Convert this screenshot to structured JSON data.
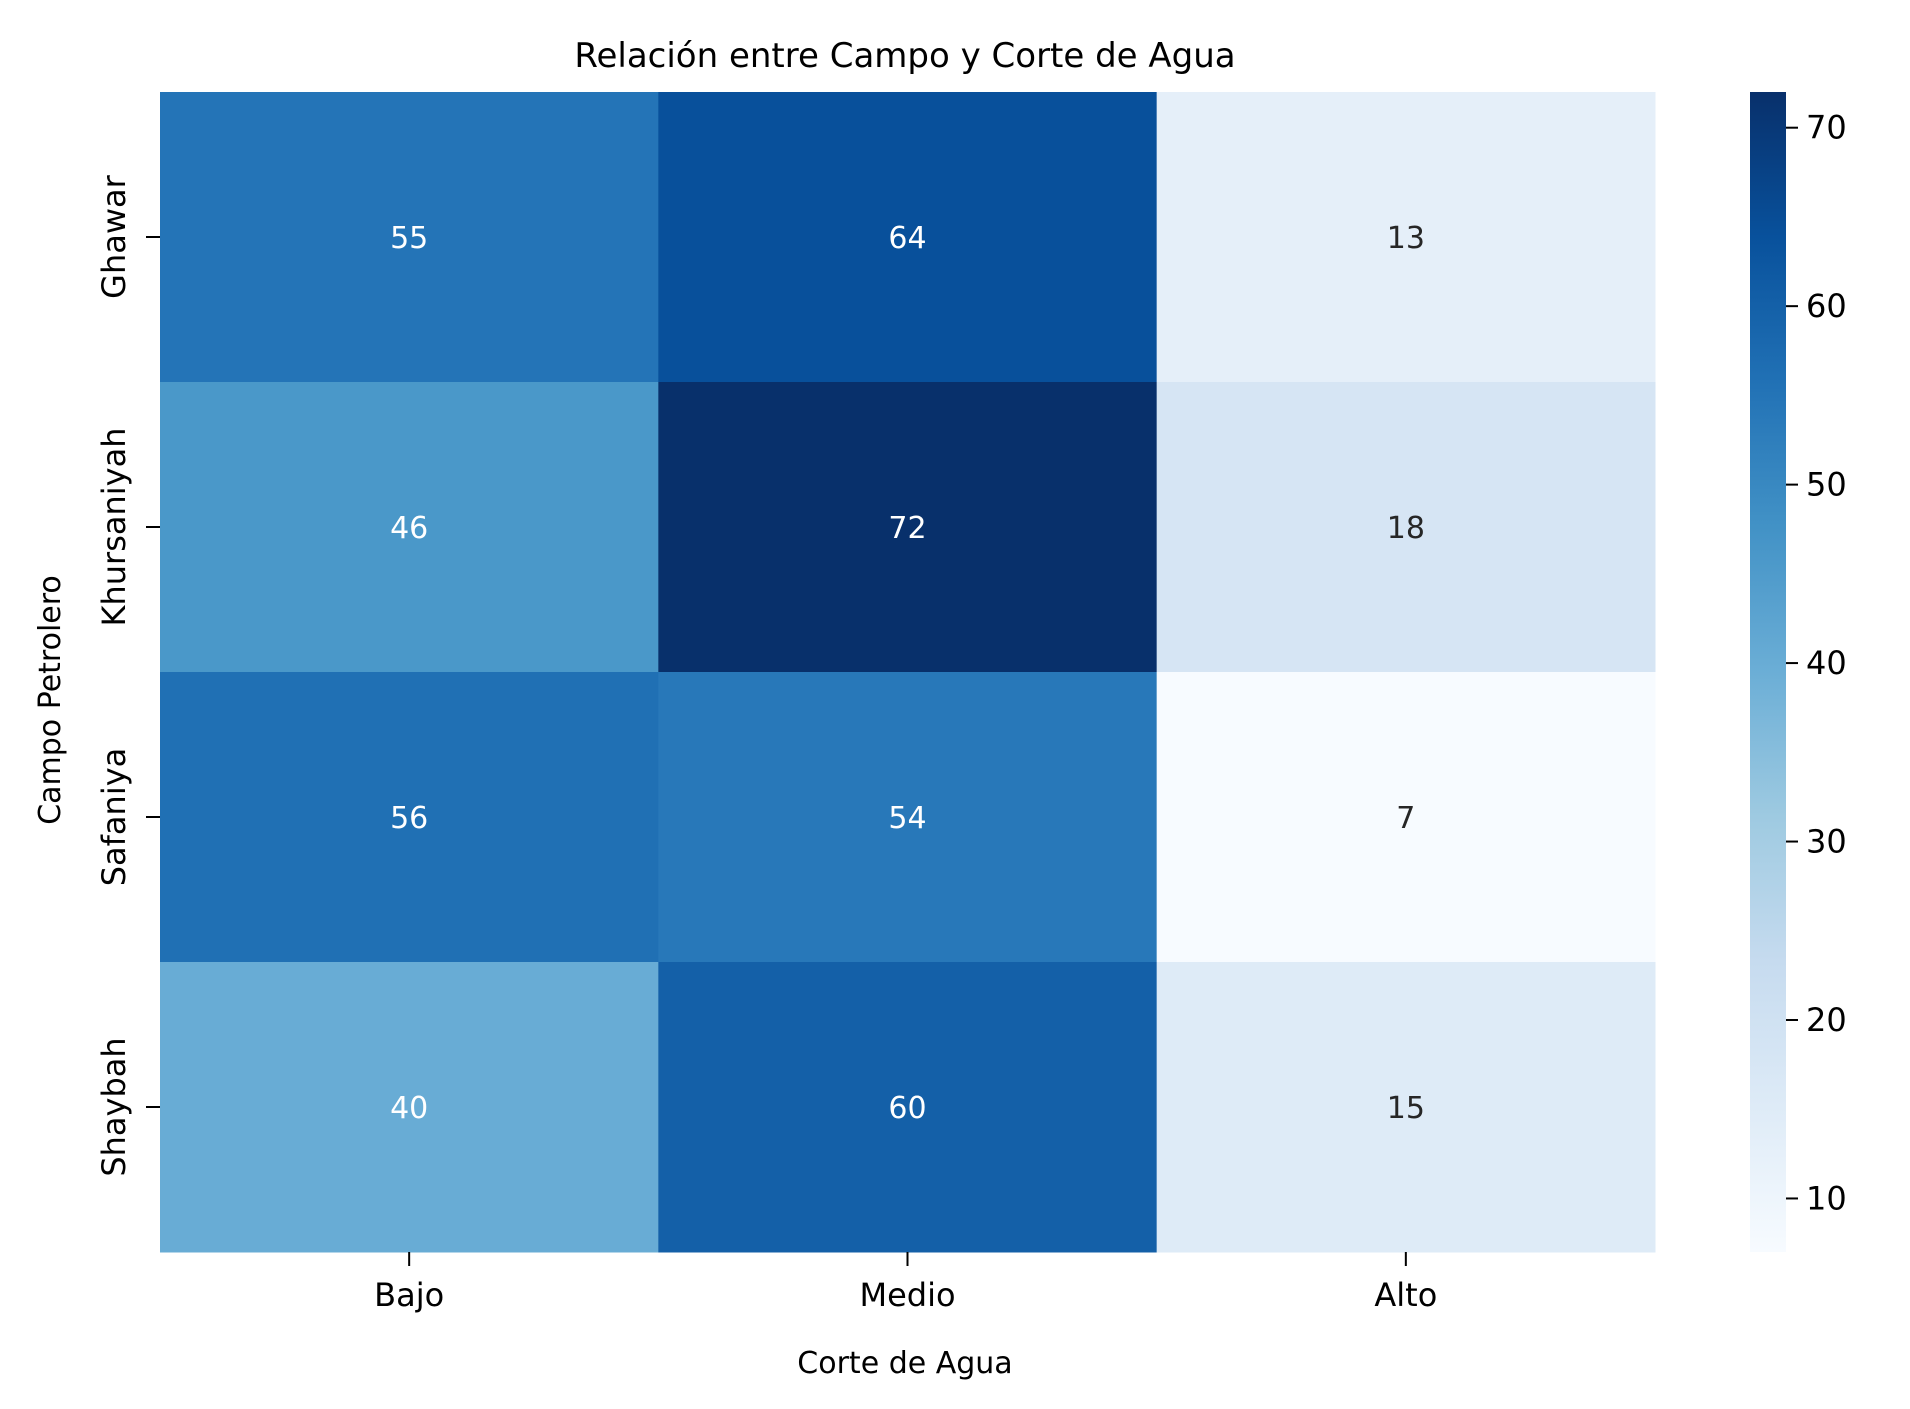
{
  "chart_data": {
    "type": "heatmap",
    "title": "Relación entre Campo y Corte de Agua",
    "xlabel": "Corte de Agua",
    "ylabel": "Campo Petrolero",
    "x_categories": [
      "Bajo",
      "Medio",
      "Alto"
    ],
    "y_categories": [
      "Ghawar",
      "Khursaniyah",
      "Safaniya",
      "Shaybah"
    ],
    "values": [
      [
        55,
        64,
        13
      ],
      [
        46,
        72,
        18
      ],
      [
        56,
        54,
        7
      ],
      [
        40,
        60,
        15
      ]
    ],
    "annotations": true,
    "colormap": "Blues",
    "colorbar": {
      "range": [
        7,
        72
      ],
      "ticks": [
        10,
        20,
        30,
        40,
        50,
        60,
        70
      ]
    }
  }
}
